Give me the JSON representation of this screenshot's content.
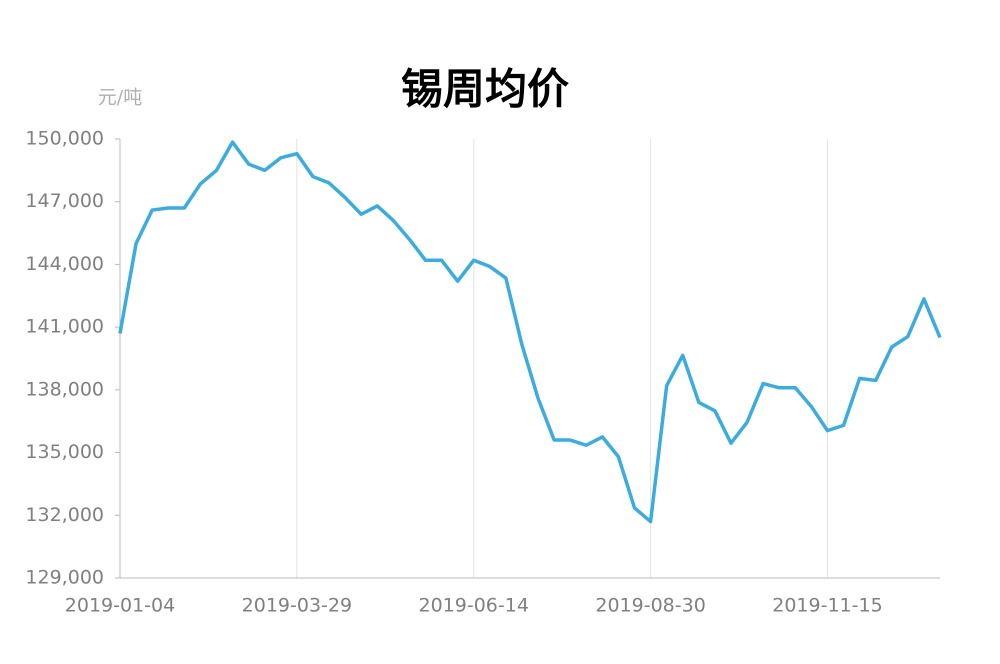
{
  "chart_data": {
    "type": "line",
    "title": "锡周均价",
    "y_unit": "元/吨",
    "categories": [
      "2019-01-04",
      null,
      null,
      null,
      null,
      null,
      null,
      null,
      null,
      null,
      null,
      "2019-03-29",
      null,
      null,
      null,
      null,
      null,
      null,
      null,
      null,
      null,
      null,
      "2019-06-14",
      null,
      null,
      null,
      null,
      null,
      null,
      null,
      null,
      null,
      null,
      "2019-08-30",
      null,
      null,
      null,
      null,
      null,
      null,
      null,
      null,
      null,
      null,
      "2019-11-15",
      null,
      null,
      null,
      null,
      null,
      null,
      null
    ],
    "values": [
      140700,
      145000,
      146600,
      146700,
      146700,
      147850,
      148500,
      149850,
      148800,
      148500,
      149100,
      149300,
      148200,
      147900,
      147200,
      146400,
      146800,
      146100,
      145200,
      144200,
      144200,
      143200,
      144200,
      143900,
      143350,
      140150,
      137600,
      135600,
      135600,
      135350,
      135750,
      134800,
      132350,
      131700,
      138200,
      139650,
      137400,
      137000,
      135450,
      136450,
      138300,
      138100,
      138100,
      137200,
      136050,
      136300,
      138550,
      138450,
      140050,
      140550,
      142350,
      140500
    ],
    "color": "#3aacdf",
    "ylim": [
      129000,
      150000
    ],
    "yticks": [
      {
        "value": 129000,
        "label": "129,000"
      },
      {
        "value": 132000,
        "label": "132,000"
      },
      {
        "value": 135000,
        "label": "135,000"
      },
      {
        "value": 138000,
        "label": "138,000"
      },
      {
        "value": 141000,
        "label": "141,000"
      },
      {
        "value": 144000,
        "label": "144,000"
      },
      {
        "value": 147000,
        "label": "147,000"
      },
      {
        "value": 150000,
        "label": "150,000"
      }
    ],
    "grid": true
  }
}
